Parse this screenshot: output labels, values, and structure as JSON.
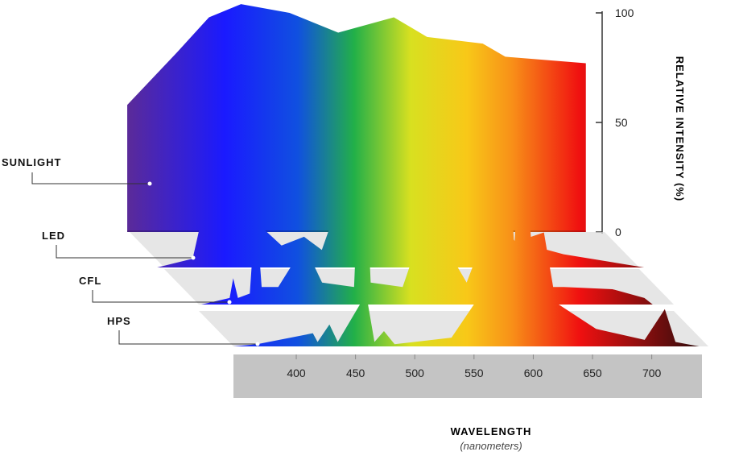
{
  "chart_data": {
    "type": "area",
    "xlabel": "WAVELENGTH",
    "xlabel_sub": "(nanometers)",
    "ylabel": "RELATIVE INTENSITY (%)",
    "xlim": [
      347,
      741
    ],
    "xticks": [
      400,
      450,
      500,
      550,
      600,
      650,
      700
    ],
    "ylim": [
      0,
      100
    ],
    "yticks": [
      0,
      50,
      100
    ],
    "series": [
      {
        "name": "SUNLIGHT",
        "x": [
          345,
          387,
          414,
          441,
          482,
          523,
          570,
          598,
          645,
          664,
          732
        ],
        "values": [
          58,
          82,
          98,
          104,
          100,
          91,
          98,
          89,
          86,
          80,
          77
        ]
      },
      {
        "name": "LED",
        "x": [
          341,
          371,
          386,
          402,
          412,
          426,
          446,
          465,
          480,
          514,
          548,
          589,
          616,
          643,
          684,
          752
        ],
        "values": [
          0,
          4,
          40,
          102,
          60,
          20,
          10,
          14,
          8,
          60,
          76,
          60,
          30,
          12,
          6,
          0
        ]
      },
      {
        "name": "CFL",
        "x": [
          349,
          373,
          376,
          380,
          390,
          395,
          400,
          414,
          436,
          451,
          478,
          485,
          492,
          519,
          531,
          546,
          560,
          573,
          587,
          589,
          594,
          614,
          641,
          655,
          696,
          723,
          730
        ],
        "values": [
          0,
          3,
          12,
          3,
          5,
          45,
          8,
          8,
          27,
          10,
          8,
          100,
          10,
          8,
          27,
          28,
          22,
          10,
          30,
          102,
          20,
          12,
          8,
          8,
          7,
          3,
          0
        ]
      },
      {
        "name": "HPS",
        "x": [
          347,
          367,
          414,
          418,
          428,
          435,
          459,
          466,
          474,
          483,
          531,
          551,
          561,
          568,
          579,
          584,
          590,
          598,
          609,
          619,
          653,
          694,
          711,
          720,
          740
        ],
        "values": [
          0,
          1,
          6,
          2,
          10,
          2,
          24,
          2,
          7,
          1,
          4,
          20,
          92,
          45,
          91,
          45,
          106,
          50,
          52,
          20,
          8,
          3,
          17,
          2,
          0
        ]
      }
    ]
  }
}
